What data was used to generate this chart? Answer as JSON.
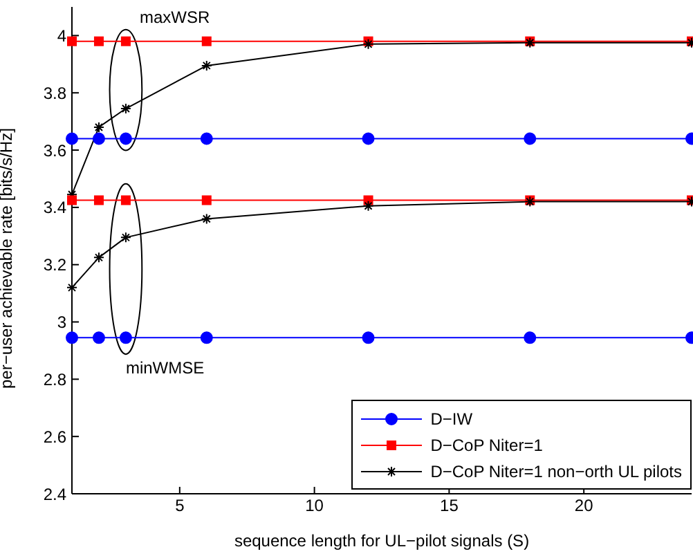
{
  "chart_data": {
    "type": "line",
    "xlabel": "sequence length for UL−pilot signals (S)",
    "ylabel": "per−user achievable rate [bits/s/Hz]",
    "x": [
      1,
      2,
      3,
      6,
      12,
      18,
      24
    ],
    "xlim": [
      1,
      24
    ],
    "xticks": [
      5,
      10,
      15,
      20
    ],
    "ylim": [
      2.4,
      4.1
    ],
    "yticks": [
      2.4,
      2.6,
      2.8,
      3,
      3.2,
      3.4,
      3.6,
      3.8,
      4
    ],
    "grid": false,
    "legend": "bottom right",
    "series": [
      {
        "name": "D−IW",
        "color": "#0000ff",
        "marker": "circle",
        "values": [
          3.64,
          3.64,
          3.64,
          3.64,
          3.64,
          3.64,
          3.64
        ]
      },
      {
        "name": "D−CoP Niter=1",
        "color": "#ff0000",
        "marker": "square",
        "values": [
          3.98,
          3.98,
          3.98,
          3.98,
          3.98,
          3.98,
          3.98
        ]
      },
      {
        "name": "D−CoP Niter=1 non−orth UL pilots",
        "color": "#000000",
        "marker": "cross",
        "values": [
          3.445,
          3.68,
          3.745,
          3.895,
          3.97,
          3.975,
          3.975
        ]
      },
      {
        "color": "#0000ff",
        "marker": "circle",
        "values": [
          2.945,
          2.945,
          2.945,
          2.945,
          2.945,
          2.945,
          2.945
        ]
      },
      {
        "color": "#ff0000",
        "marker": "square",
        "values": [
          3.425,
          3.425,
          3.425,
          3.425,
          3.425,
          3.425,
          3.425
        ]
      },
      {
        "color": "#000000",
        "marker": "cross",
        "values": [
          3.12,
          3.225,
          3.295,
          3.36,
          3.405,
          3.42,
          3.42
        ]
      }
    ],
    "annotations": [
      "maxWSR",
      "minWMSE"
    ]
  }
}
